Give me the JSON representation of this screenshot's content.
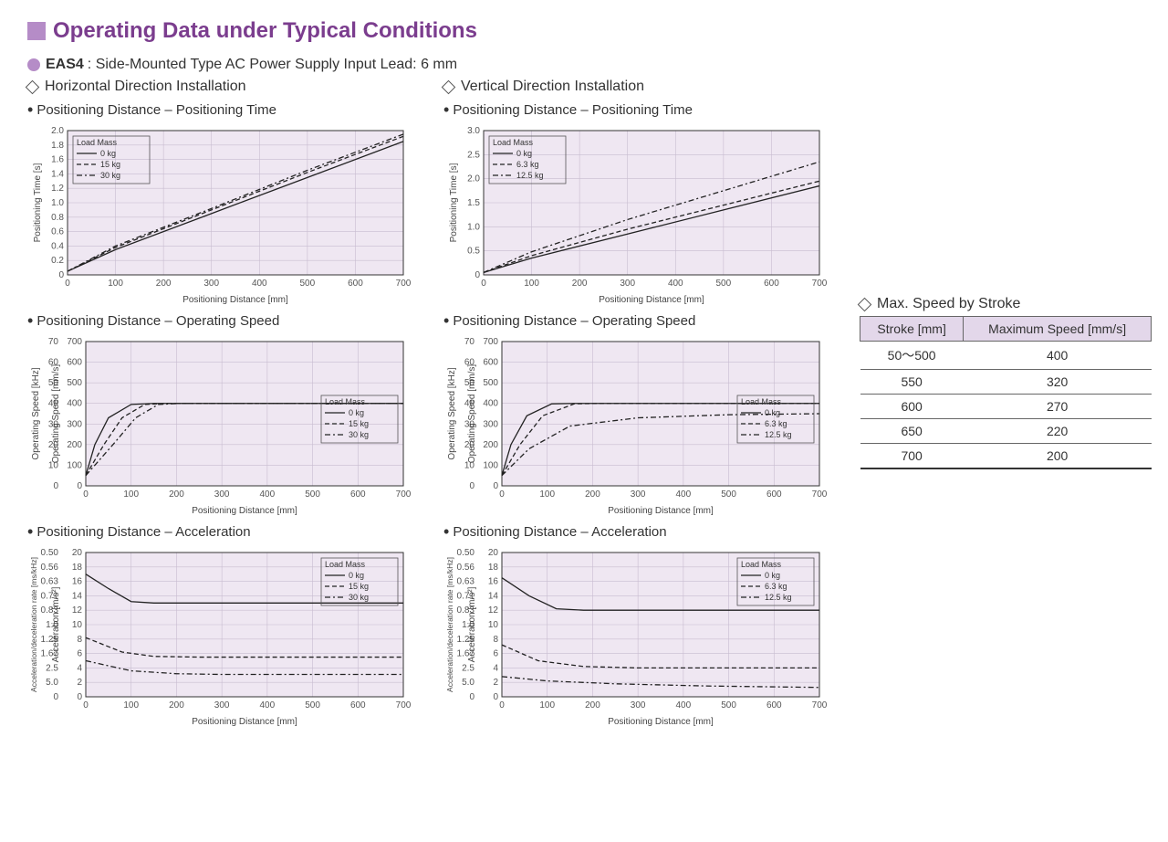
{
  "title": "Operating Data under Typical Conditions",
  "title_color": "#7b3d8e",
  "title_marker_color": "#b58cc7",
  "product": {
    "dot_color": "#b58cc7",
    "model": "EAS4",
    "desc": ": Side-Mounted Type  AC Power Supply Input  Lead: 6 mm"
  },
  "horizontal": {
    "heading": "Horizontal Direction Installation",
    "pos_time": {
      "title": "Positioning Distance – Positioning Time",
      "type": "line",
      "bg": "#efe7f2",
      "grid_color": "#c8bcd0",
      "xlabel": "Positioning Distance [mm]",
      "ylabel": "Positioning Time [s]",
      "xlim": [
        0,
        700
      ],
      "xtick_step": 100,
      "ylim": [
        0,
        2.0
      ],
      "ytick_step": 0.2,
      "legend_title": "Load Mass",
      "legend_pos": "top-left",
      "series": [
        {
          "name": "0 kg",
          "style": "solid",
          "data": [
            [
              0,
              0.05
            ],
            [
              100,
              0.35
            ],
            [
              300,
              0.85
            ],
            [
              500,
              1.35
            ],
            [
              700,
              1.85
            ]
          ]
        },
        {
          "name": "15 kg",
          "style": "dash",
          "data": [
            [
              0,
              0.05
            ],
            [
              100,
              0.38
            ],
            [
              300,
              0.9
            ],
            [
              500,
              1.42
            ],
            [
              700,
              1.92
            ]
          ]
        },
        {
          "name": "30 kg",
          "style": "ddash",
          "data": [
            [
              0,
              0.05
            ],
            [
              100,
              0.4
            ],
            [
              300,
              0.92
            ],
            [
              500,
              1.45
            ],
            [
              700,
              1.95
            ]
          ]
        }
      ]
    },
    "pos_speed": {
      "title": "Positioning Distance – Operating Speed",
      "type": "line",
      "bg": "#efe7f2",
      "grid_color": "#c8bcd0",
      "xlabel": "Positioning Distance [mm]",
      "ylabel1": "Operating Speed [kHz]",
      "ylabel2": "Operating Speed [mm/s]",
      "xlim": [
        0,
        700
      ],
      "xtick_step": 100,
      "ylim1": [
        0,
        70
      ],
      "ytick1_step": 10,
      "ylim2": [
        0,
        700
      ],
      "ytick2_step": 100,
      "legend_title": "Load Mass",
      "legend_pos": "mid-right",
      "series": [
        {
          "name": "0 kg",
          "style": "solid",
          "data": [
            [
              0,
              50
            ],
            [
              20,
              200
            ],
            [
              50,
              330
            ],
            [
              100,
              395
            ],
            [
              150,
              400
            ],
            [
              700,
              400
            ]
          ]
        },
        {
          "name": "15 kg",
          "style": "dash",
          "data": [
            [
              0,
              50
            ],
            [
              40,
              200
            ],
            [
              80,
              330
            ],
            [
              130,
              395
            ],
            [
              180,
              400
            ],
            [
              700,
              400
            ]
          ]
        },
        {
          "name": "30 kg",
          "style": "ddash",
          "data": [
            [
              0,
              50
            ],
            [
              60,
              200
            ],
            [
              110,
              330
            ],
            [
              160,
              395
            ],
            [
              210,
              400
            ],
            [
              700,
              400
            ]
          ]
        }
      ]
    },
    "pos_accel": {
      "title": "Positioning Distance – Acceleration",
      "type": "line",
      "bg": "#efe7f2",
      "grid_color": "#c8bcd0",
      "xlabel": "Positioning Distance [mm]",
      "ylabel1": "Acceleration/deceleration rate [ms/kHz]",
      "ylabel2": "Acceleration [m/s²]",
      "xlim": [
        0,
        700
      ],
      "xtick_step": 100,
      "yticks1": [
        "0",
        "5.0",
        "2.5",
        "1.67",
        "1.25",
        "1.0",
        "0.83",
        "0.71",
        "0.63",
        "0.56",
        "0.50"
      ],
      "ylim2": [
        0,
        20
      ],
      "ytick2_step": 2,
      "legend_title": "Load Mass",
      "legend_pos": "top-right",
      "series": [
        {
          "name": "0 kg",
          "style": "solid",
          "data": [
            [
              0,
              17
            ],
            [
              50,
              15
            ],
            [
              100,
              13.2
            ],
            [
              150,
              13
            ],
            [
              700,
              13
            ]
          ]
        },
        {
          "name": "15 kg",
          "style": "dash",
          "data": [
            [
              0,
              8.2
            ],
            [
              80,
              6.2
            ],
            [
              150,
              5.6
            ],
            [
              250,
              5.5
            ],
            [
              700,
              5.5
            ]
          ]
        },
        {
          "name": "30 kg",
          "style": "ddash",
          "data": [
            [
              0,
              5
            ],
            [
              100,
              3.6
            ],
            [
              200,
              3.2
            ],
            [
              300,
              3.1
            ],
            [
              700,
              3.1
            ]
          ]
        }
      ]
    }
  },
  "vertical": {
    "heading": "Vertical Direction Installation",
    "pos_time": {
      "title": "Positioning Distance – Positioning Time",
      "type": "line",
      "bg": "#efe7f2",
      "grid_color": "#c8bcd0",
      "xlabel": "Positioning Distance [mm]",
      "ylabel": "Positioning Time [s]",
      "xlim": [
        0,
        700
      ],
      "xtick_step": 100,
      "ylim": [
        0,
        3.0
      ],
      "ytick_step": 0.5,
      "legend_title": "Load Mass",
      "legend_pos": "top-left",
      "series": [
        {
          "name": "0 kg",
          "style": "solid",
          "data": [
            [
              0,
              0.05
            ],
            [
              100,
              0.35
            ],
            [
              300,
              0.85
            ],
            [
              500,
              1.35
            ],
            [
              700,
              1.85
            ]
          ]
        },
        {
          "name": "6.3 kg",
          "style": "dash",
          "data": [
            [
              0,
              0.05
            ],
            [
              100,
              0.4
            ],
            [
              300,
              0.95
            ],
            [
              500,
              1.45
            ],
            [
              700,
              1.95
            ]
          ]
        },
        {
          "name": "12.5 kg",
          "style": "ddash",
          "data": [
            [
              0,
              0.05
            ],
            [
              100,
              0.48
            ],
            [
              300,
              1.15
            ],
            [
              500,
              1.75
            ],
            [
              700,
              2.35
            ]
          ]
        }
      ]
    },
    "pos_speed": {
      "title": "Positioning Distance – Operating Speed",
      "type": "line",
      "bg": "#efe7f2",
      "grid_color": "#c8bcd0",
      "xlabel": "Positioning Distance [mm]",
      "ylabel1": "Operating Speed [kHz]",
      "ylabel2": "Operating Speed [mm/s]",
      "xlim": [
        0,
        700
      ],
      "xtick_step": 100,
      "ylim1": [
        0,
        70
      ],
      "ytick1_step": 10,
      "ylim2": [
        0,
        700
      ],
      "ytick2_step": 100,
      "legend_title": "Load Mass",
      "legend_pos": "mid-right",
      "series": [
        {
          "name": "0 kg",
          "style": "solid",
          "data": [
            [
              0,
              50
            ],
            [
              20,
              200
            ],
            [
              55,
              340
            ],
            [
              110,
              398
            ],
            [
              160,
              400
            ],
            [
              700,
              400
            ]
          ]
        },
        {
          "name": "6.3 kg",
          "style": "dash",
          "data": [
            [
              0,
              50
            ],
            [
              40,
              200
            ],
            [
              90,
              340
            ],
            [
              160,
              398
            ],
            [
              220,
              400
            ],
            [
              700,
              400
            ]
          ]
        },
        {
          "name": "12.5 kg",
          "style": "ddash",
          "data": [
            [
              0,
              50
            ],
            [
              60,
              180
            ],
            [
              150,
              290
            ],
            [
              300,
              330
            ],
            [
              500,
              345
            ],
            [
              700,
              350
            ]
          ]
        }
      ]
    },
    "pos_accel": {
      "title": "Positioning Distance – Acceleration",
      "type": "line",
      "bg": "#efe7f2",
      "grid_color": "#c8bcd0",
      "xlabel": "Positioning Distance [mm]",
      "ylabel1": "Acceleration/deceleration rate [ms/kHz]",
      "ylabel2": "Acceleration [m/s²]",
      "xlim": [
        0,
        700
      ],
      "xtick_step": 100,
      "yticks1": [
        "0",
        "5.0",
        "2.5",
        "1.67",
        "1.25",
        "1.0",
        "0.83",
        "0.71",
        "0.63",
        "0.56",
        "0.50"
      ],
      "ylim2": [
        0,
        20
      ],
      "ytick2_step": 2,
      "legend_title": "Load Mass",
      "legend_pos": "top-right",
      "series": [
        {
          "name": "0 kg",
          "style": "solid",
          "data": [
            [
              0,
              16.5
            ],
            [
              60,
              14
            ],
            [
              120,
              12.2
            ],
            [
              180,
              12
            ],
            [
              700,
              12
            ]
          ]
        },
        {
          "name": "6.3 kg",
          "style": "dash",
          "data": [
            [
              0,
              7.2
            ],
            [
              80,
              5
            ],
            [
              180,
              4.2
            ],
            [
              300,
              4
            ],
            [
              700,
              4
            ]
          ]
        },
        {
          "name": "12.5 kg",
          "style": "ddash",
          "data": [
            [
              0,
              2.8
            ],
            [
              100,
              2.2
            ],
            [
              250,
              1.8
            ],
            [
              450,
              1.5
            ],
            [
              700,
              1.3
            ]
          ]
        }
      ]
    }
  },
  "speed_table": {
    "title": "Max. Speed by Stroke",
    "columns": [
      "Stroke [mm]",
      "Maximum Speed [mm/s]"
    ],
    "header_bg": "#e3d7ea",
    "rows": [
      [
        "50～500",
        "400"
      ],
      [
        "550",
        "320"
      ],
      [
        "600",
        "270"
      ],
      [
        "650",
        "220"
      ],
      [
        "700",
        "200"
      ]
    ]
  }
}
